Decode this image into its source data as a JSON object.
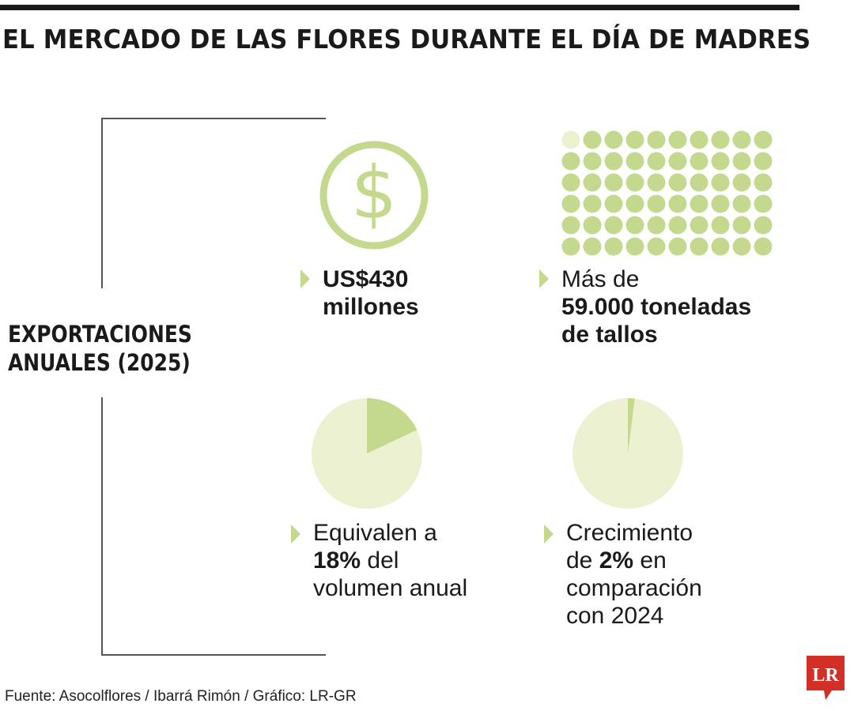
{
  "title": "EL MERCADO DE LAS FLORES DURANTE EL DÍA DE MADRES",
  "section_label": {
    "line1": "EXPORTACIONES",
    "line2": "ANUALES (2025)"
  },
  "stats": {
    "value": {
      "line1": "US$430",
      "line2": "millones"
    },
    "tons": {
      "line1": "Más de",
      "line2": "59.000 toneladas",
      "line3": "de tallos"
    },
    "share": {
      "line1": "Equivalen a",
      "bold": "18%",
      "rest": " del",
      "line3": "volumen anual"
    },
    "growth": {
      "line1": "Crecimiento",
      "pre": "de ",
      "bold": "2%",
      "post": " en",
      "line3": "comparación",
      "line4": "con 2024"
    }
  },
  "icons": {
    "money": "dollar-circle-icon",
    "arrow": "triangle-arrow-icon"
  },
  "colors": {
    "accent": "#c4d98d",
    "light": "#ecf2d1",
    "dot_empty": "#ecf2d1",
    "logo": "#d22f27"
  },
  "logo": "LR",
  "source": "Fuente: Asocolflores / Ibarrá Rimón / Gráfico: LR-GR",
  "chart_data": [
    {
      "type": "pie",
      "values": [
        18,
        82
      ],
      "unit": "%"
    },
    {
      "type": "pie",
      "values": [
        2,
        98
      ],
      "unit": "%"
    },
    {
      "type": "waffle",
      "rows": 6,
      "cols": 10,
      "filled": 59,
      "total": 60
    }
  ]
}
